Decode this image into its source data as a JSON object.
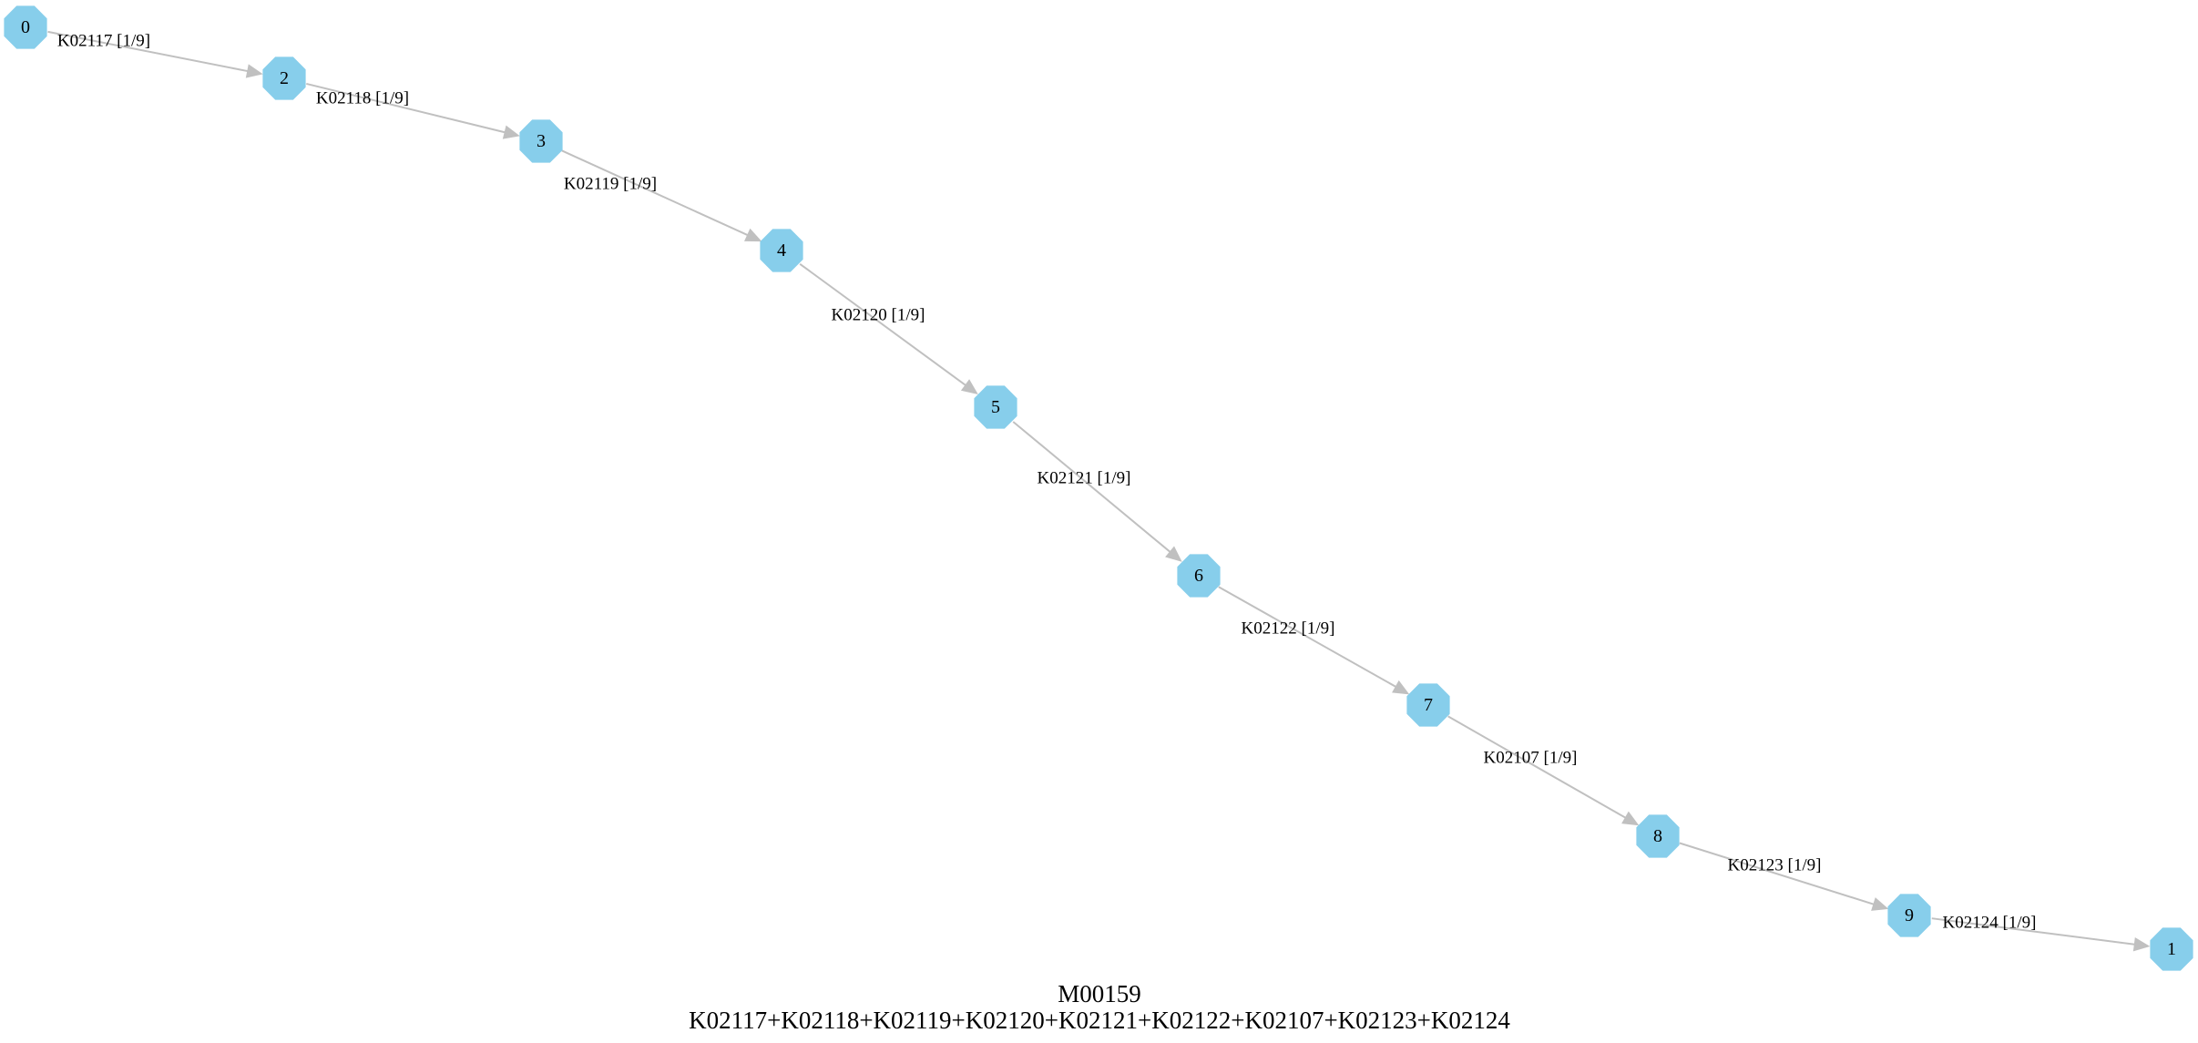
{
  "diagram": {
    "title": "M00159",
    "subtitle": "K02117+K02118+K02119+K02120+K02121+K02122+K02107+K02123+K02124",
    "node_color": "#87ceeb",
    "edge_color": "#c0c0c0",
    "nodes": [
      {
        "id": "0",
        "label": "0"
      },
      {
        "id": "2",
        "label": "2"
      },
      {
        "id": "3",
        "label": "3"
      },
      {
        "id": "4",
        "label": "4"
      },
      {
        "id": "5",
        "label": "5"
      },
      {
        "id": "6",
        "label": "6"
      },
      {
        "id": "7",
        "label": "7"
      },
      {
        "id": "8",
        "label": "8"
      },
      {
        "id": "9",
        "label": "9"
      },
      {
        "id": "1",
        "label": "1"
      }
    ],
    "edges": [
      {
        "from": "0",
        "to": "2",
        "label": "K02117 [1/9]"
      },
      {
        "from": "2",
        "to": "3",
        "label": "K02118 [1/9]"
      },
      {
        "from": "3",
        "to": "4",
        "label": "K02119 [1/9]"
      },
      {
        "from": "4",
        "to": "5",
        "label": "K02120 [1/9]"
      },
      {
        "from": "5",
        "to": "6",
        "label": "K02121 [1/9]"
      },
      {
        "from": "6",
        "to": "7",
        "label": "K02122 [1/9]"
      },
      {
        "from": "7",
        "to": "8",
        "label": "K02107 [1/9]"
      },
      {
        "from": "8",
        "to": "9",
        "label": "K02123 [1/9]"
      },
      {
        "from": "9",
        "to": "1",
        "label": "K02124 [1/9]"
      }
    ]
  }
}
